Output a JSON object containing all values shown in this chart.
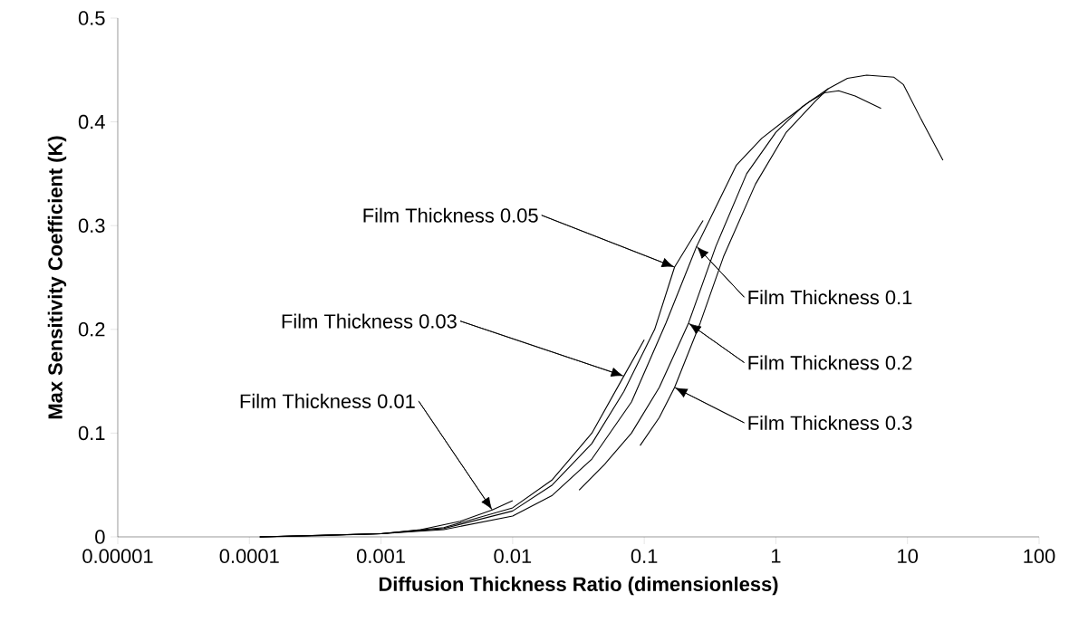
{
  "chart_data": {
    "type": "line",
    "xlabel": "Diffusion Thickness Ratio (dimensionless)",
    "ylabel": "Max Sensitivity Coefficient (K)",
    "log": "x",
    "xlim": [
      1e-05,
      100
    ],
    "ylim": [
      0,
      0.5
    ],
    "xticks": [
      {
        "value": 1e-05,
        "label": "0.00001"
      },
      {
        "value": 0.0001,
        "label": "0.0001"
      },
      {
        "value": 0.001,
        "label": "0.001"
      },
      {
        "value": 0.01,
        "label": "0.01"
      },
      {
        "value": 0.1,
        "label": "0.1"
      },
      {
        "value": 1,
        "label": "1"
      },
      {
        "value": 10,
        "label": "10"
      },
      {
        "value": 100,
        "label": "100"
      }
    ],
    "yticks": [
      0,
      0.1,
      0.2,
      0.3,
      0.4,
      0.5
    ],
    "series": [
      {
        "color": "#000000",
        "x": [
          0.00012,
          0.0003,
          0.001,
          0.002,
          0.004,
          0.007,
          0.01
        ],
        "values": [
          0,
          0.001,
          0.003,
          0.007,
          0.015,
          0.026,
          0.035
        ]
      },
      {
        "color": "#000000",
        "x": [
          0.00012,
          0.001,
          0.003,
          0.01,
          0.02,
          0.04,
          0.07,
          0.1
        ],
        "values": [
          0,
          0.003,
          0.009,
          0.028,
          0.055,
          0.1,
          0.155,
          0.19
        ]
      },
      {
        "color": "#000000",
        "x": [
          0.00012,
          0.001,
          0.003,
          0.01,
          0.02,
          0.04,
          0.07,
          0.12,
          0.17,
          0.28
        ],
        "values": [
          0,
          0.003,
          0.008,
          0.025,
          0.05,
          0.09,
          0.14,
          0.2,
          0.26,
          0.305
        ]
      },
      {
        "color": "#000000",
        "x": [
          0.00012,
          0.001,
          0.003,
          0.01,
          0.02,
          0.04,
          0.08,
          0.146,
          0.25,
          0.5,
          0.78,
          1.24,
          1.78,
          2.34,
          3,
          4,
          6.3
        ],
        "values": [
          0,
          0.003,
          0.007,
          0.02,
          0.04,
          0.075,
          0.13,
          0.206,
          0.28,
          0.358,
          0.384,
          0.404,
          0.419,
          0.428,
          0.43,
          0.425,
          0.413
        ]
      },
      {
        "color": "#000000",
        "x": [
          0.032,
          0.05,
          0.08,
          0.13,
          0.217,
          0.35,
          0.6,
          1,
          1.6,
          2.5,
          3.5,
          4.9,
          7.9,
          9.3,
          13,
          18.6
        ],
        "values": [
          0.045,
          0.07,
          0.1,
          0.144,
          0.206,
          0.28,
          0.35,
          0.39,
          0.415,
          0.432,
          0.442,
          0.445,
          0.443,
          0.436,
          0.4,
          0.363
        ]
      },
      {
        "color": "#000000",
        "x": [
          0.093,
          0.13,
          0.17,
          0.266,
          0.4,
          0.7,
          1.2,
          2,
          2.5
        ],
        "values": [
          0.088,
          0.115,
          0.144,
          0.206,
          0.27,
          0.34,
          0.39,
          0.42,
          0.432
        ]
      }
    ],
    "annotations": [
      {
        "text": "Film Thickness 0.01",
        "x": 0.007,
        "y": 0.026
      },
      {
        "text": "Film Thickness 0.03",
        "x": 0.07,
        "y": 0.155
      },
      {
        "text": "Film Thickness 0.05",
        "x": 0.17,
        "y": 0.26
      },
      {
        "text": "Film Thickness 0.1",
        "x": 0.25,
        "y": 0.28
      },
      {
        "text": "Film Thickness 0.2",
        "x": 0.217,
        "y": 0.206
      },
      {
        "text": "Film Thickness 0.3",
        "x": 0.17,
        "y": 0.144
      }
    ]
  }
}
